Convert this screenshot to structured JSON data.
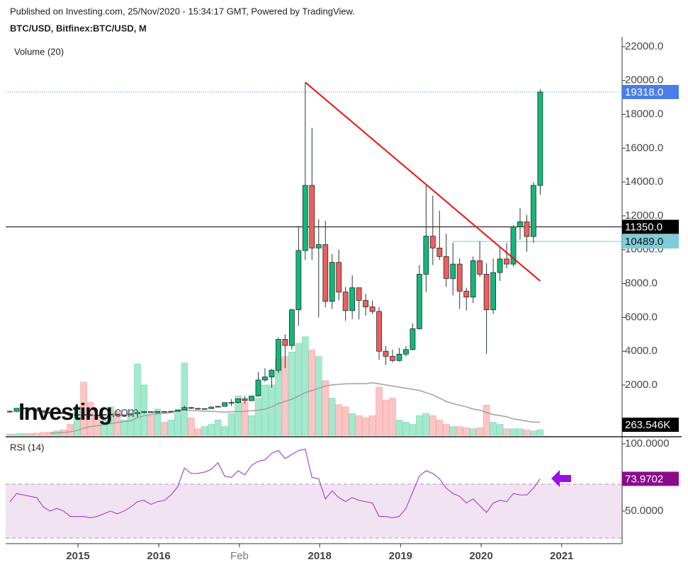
{
  "chart_data": {
    "type": "candlestick",
    "header": "Published on Investing.com, 25/Nov/2020 - 15:34:17 GMT, Powered by TradingView.",
    "title": "BTC/USD, Bitfinex:BTC/USD, M",
    "logo": {
      "name": "Investing",
      "suffix": ".com"
    },
    "categories": [
      null,
      null,
      null,
      null,
      null,
      null,
      null,
      null,
      null,
      null,
      null,
      null,
      null,
      null,
      null,
      null,
      null,
      null,
      null,
      null,
      null,
      null,
      null,
      null,
      null,
      null,
      null,
      null,
      null,
      null,
      null,
      null,
      null,
      null,
      null,
      null,
      null,
      null,
      null,
      null,
      null,
      null,
      null,
      null,
      null,
      null,
      null,
      null,
      null,
      null,
      null,
      null,
      null,
      null,
      null,
      null,
      null,
      null,
      null,
      null,
      null,
      null,
      null,
      null,
      null,
      null,
      null,
      null,
      null,
      null,
      null,
      null,
      null,
      null,
      null,
      null,
      null,
      null,
      null,
      null
    ],
    "xlim": [
      -0.63,
      91.2
    ],
    "xticks": [
      {
        "value": 10.14,
        "label": "2015"
      },
      {
        "value": 22.18,
        "label": "2016"
      },
      {
        "value": 34.2,
        "label": "Feb"
      },
      {
        "value": 46.15,
        "label": "2018"
      },
      {
        "value": 58.2,
        "label": "2019"
      },
      {
        "value": 70.2,
        "label": "2020"
      },
      {
        "value": 82.2,
        "label": "2021"
      }
    ],
    "ylim": [
      -970,
      22330
    ],
    "yticks": [
      {
        "value": 2000,
        "label": "2000.0"
      },
      {
        "value": 4000,
        "label": "4000.0"
      },
      {
        "value": 6000,
        "label": "6000.0"
      },
      {
        "value": 8000,
        "label": "8000.0"
      },
      {
        "value": 10000,
        "label": "10000.0"
      },
      {
        "value": 12000,
        "label": "12000.0"
      },
      {
        "value": 14000,
        "label": "14000.0"
      },
      {
        "value": 16000,
        "label": "16000.0"
      },
      {
        "value": 18000,
        "label": "18000.0"
      },
      {
        "value": 20000,
        "label": "20000.0"
      },
      {
        "value": 22000,
        "label": "22000.0"
      }
    ],
    "up_color": "#10b97a",
    "down_color": "#ef5e5e",
    "open": [
      450,
      445,
      630,
      640,
      585,
      480,
      390,
      340,
      380,
      320,
      218,
      255,
      245,
      235,
      230,
      263,
      284,
      230,
      236,
      314,
      377,
      430,
      368,
      437,
      416,
      448,
      531,
      673,
      624,
      575,
      609,
      700,
      742,
      963,
      970,
      1190,
      1080,
      1350,
      2300,
      2480,
      2875,
      4700,
      4340,
      6450,
      9950,
      13800,
      10100,
      10300,
      6950,
      9250,
      7500,
      6400,
      7750,
      7000,
      6620,
      6350,
      4000,
      3700,
      3450,
      3830,
      4100,
      5330,
      8550,
      10800,
      10100,
      9600,
      8300,
      9150,
      7550,
      7200,
      9350,
      8550,
      6450,
      8650,
      9450,
      9150,
      11350,
      11650,
      10780,
      13800
    ],
    "high": [
      500,
      640,
      680,
      660,
      600,
      500,
      420,
      460,
      460,
      330,
      270,
      300,
      300,
      250,
      270,
      320,
      290,
      250,
      320,
      500,
      470,
      440,
      440,
      440,
      470,
      550,
      780,
      700,
      630,
      620,
      720,
      760,
      980,
      1170,
      1210,
      1350,
      1370,
      2760,
      2990,
      2950,
      4800,
      5000,
      6500,
      11400,
      19891,
      17200,
      11800,
      11700,
      9750,
      10000,
      7800,
      8500,
      7600,
      7400,
      7000,
      6600,
      4300,
      4100,
      4200,
      4300,
      5650,
      9100,
      13800,
      13200,
      12300,
      10950,
      10400,
      9500,
      7750,
      9600,
      10500,
      9200,
      9470,
      10100,
      10400,
      11450,
      12450,
      12050,
      14000,
      19480
    ],
    "low": [
      360,
      420,
      530,
      560,
      460,
      360,
      270,
      310,
      310,
      150,
      210,
      240,
      200,
      220,
      220,
      260,
      200,
      220,
      230,
      300,
      340,
      350,
      350,
      400,
      400,
      440,
      520,
      590,
      560,
      570,
      600,
      690,
      740,
      750,
      920,
      900,
      1060,
      1350,
      2200,
      1850,
      2700,
      3000,
      4100,
      5500,
      9400,
      9400,
      6000,
      6600,
      6500,
      7000,
      5800,
      5900,
      5880,
      6100,
      6200,
      3500,
      3200,
      3350,
      3400,
      3700,
      4050,
      5300,
      7500,
      9100,
      9400,
      7800,
      7300,
      6500,
      6400,
      6850,
      8400,
      3850,
      6200,
      8150,
      8900,
      9000,
      10600,
      9880,
      10400,
      13250
    ],
    "close": [
      445,
      630,
      640,
      585,
      480,
      390,
      340,
      380,
      320,
      218,
      255,
      245,
      235,
      230,
      263,
      284,
      230,
      236,
      314,
      377,
      430,
      368,
      437,
      416,
      448,
      531,
      673,
      624,
      575,
      609,
      700,
      742,
      963,
      970,
      1190,
      1080,
      1350,
      2300,
      2480,
      2875,
      4700,
      4340,
      6450,
      9950,
      13800,
      10100,
      10300,
      6950,
      9250,
      7500,
      6400,
      7750,
      7000,
      6620,
      6350,
      4000,
      3700,
      3450,
      3830,
      4100,
      5330,
      8550,
      10800,
      10100,
      9600,
      8300,
      9150,
      7550,
      7200,
      9350,
      8550,
      6450,
      8650,
      9450,
      9150,
      11350,
      11650,
      10780,
      13800,
      19318
    ],
    "close_value_labels": [
      null,
      null,
      null,
      null,
      null,
      null,
      null,
      null,
      null,
      null,
      null,
      null,
      null,
      null,
      null,
      null,
      null,
      null,
      null,
      null,
      null,
      null,
      null,
      null,
      null,
      null,
      null,
      null,
      null,
      null,
      null,
      null,
      null,
      null,
      null,
      null,
      null,
      null,
      null,
      null,
      null,
      null,
      null,
      null,
      null,
      null,
      null,
      null,
      null,
      null,
      null,
      null,
      null,
      null,
      null,
      null,
      null,
      null,
      null,
      null,
      null,
      null,
      null,
      null,
      null,
      null,
      null,
      null,
      null,
      null,
      null,
      null,
      null,
      null,
      null,
      null,
      null,
      null,
      null,
      "19318.0"
    ],
    "last_color": "#4a7de8",
    "levels": [
      {
        "value": 11350,
        "label": "11350.0",
        "color": "#000000"
      },
      {
        "value": 10489,
        "label": "10489.0",
        "color": "#7ecbd9",
        "from": 66
      }
    ],
    "trendline": {
      "x": [
        44,
        79
      ],
      "y": [
        19891,
        8150
      ],
      "color": "#ee1111"
    },
    "volume": {
      "name": "Volume (20)",
      "ylim": [
        0,
        18000
      ],
      "up_color": "#a4e9cd",
      "down_color": "#fcc5c5",
      "ma_color": "#a0a0a0",
      "values": [
        60,
        70,
        80,
        90,
        100,
        130,
        150,
        200,
        250,
        500,
        1300,
        2430,
        1500,
        900,
        700,
        1300,
        1100,
        700,
        900,
        3260,
        2300,
        900,
        1200,
        600,
        700,
        1100,
        3300,
        800,
        300,
        400,
        500,
        700,
        400,
        1000,
        1800,
        1500,
        900,
        1700,
        2300,
        2300,
        3500,
        3600,
        3800,
        4200,
        4500,
        3900,
        3600,
        2500,
        1700,
        1400,
        1300,
        1000,
        900,
        800,
        900,
        2200,
        1600,
        1700,
        700,
        600,
        500,
        900,
        1000,
        900,
        700,
        500,
        400,
        400,
        350,
        300,
        350,
        1380,
        600,
        500,
        300,
        300,
        300,
        250,
        200,
        263.546
      ],
      "value_labels": [
        null,
        null,
        null,
        null,
        null,
        null,
        null,
        null,
        null,
        null,
        null,
        null,
        null,
        null,
        null,
        null,
        null,
        null,
        null,
        null,
        null,
        null,
        null,
        null,
        null,
        null,
        null,
        null,
        null,
        null,
        null,
        null,
        null,
        null,
        null,
        null,
        null,
        null,
        null,
        null,
        null,
        null,
        null,
        null,
        null,
        null,
        null,
        null,
        null,
        null,
        null,
        null,
        null,
        null,
        null,
        null,
        null,
        null,
        null,
        null,
        null,
        null,
        null,
        null,
        null,
        null,
        null,
        null,
        null,
        null,
        null,
        null,
        null,
        null,
        null,
        null,
        null,
        null,
        null,
        "263.546K"
      ],
      "ma": [
        null,
        null,
        null,
        null,
        null,
        null,
        90,
        110,
        130,
        160,
        220,
        330,
        400,
        440,
        480,
        540,
        590,
        620,
        660,
        800,
        900,
        950,
        980,
        1000,
        1040,
        1150,
        1160,
        1130,
        1120,
        1100,
        1100,
        1080,
        1060,
        1080,
        1090,
        1100,
        1120,
        1150,
        1200,
        1300,
        1450,
        1550,
        1650,
        1800,
        1950,
        2050,
        2150,
        2250,
        2300,
        2330,
        2350,
        2360,
        2360,
        2360,
        2400,
        2350,
        2300,
        2250,
        2200,
        2150,
        2100,
        2050,
        1950,
        1850,
        1700,
        1550,
        1450,
        1380,
        1300,
        1200,
        1150,
        1050,
        950,
        900,
        850,
        750,
        700,
        650,
        600,
        600
      ]
    },
    "rsi": {
      "name": "RSI (14)",
      "color": "#a64ac9",
      "band": [
        30,
        70
      ],
      "band_color": "#f2e3f2",
      "label_color": "#8b0a8b",
      "ylim": [
        25.8,
        104.7
      ],
      "yticks": [
        {
          "value": 50,
          "label": "50.0000"
        },
        {
          "value": 100,
          "label": "100.0000"
        }
      ],
      "values": [
        57,
        63,
        62,
        61,
        60,
        53,
        50,
        52,
        50,
        46,
        46,
        46,
        45,
        46,
        48,
        50,
        48,
        50,
        53,
        57,
        58,
        55,
        57,
        58,
        62,
        68,
        82,
        78,
        78,
        79,
        81,
        86,
        76,
        75,
        80,
        77,
        84,
        87,
        88,
        93,
        95,
        89,
        92,
        95,
        96,
        75,
        74,
        59,
        65,
        60,
        57,
        60,
        58,
        57,
        56,
        46,
        46,
        45,
        46,
        52,
        64,
        76,
        80,
        78,
        74,
        67,
        63,
        61,
        56,
        59,
        54,
        49,
        56,
        58,
        57,
        63,
        62,
        62,
        67,
        73.9702
      ],
      "value_labels": [
        null,
        null,
        null,
        null,
        null,
        null,
        null,
        null,
        null,
        null,
        null,
        null,
        null,
        null,
        null,
        null,
        null,
        null,
        null,
        null,
        null,
        null,
        null,
        null,
        null,
        null,
        null,
        null,
        null,
        null,
        null,
        null,
        null,
        null,
        null,
        null,
        null,
        null,
        null,
        null,
        null,
        null,
        null,
        null,
        null,
        null,
        null,
        null,
        null,
        null,
        null,
        null,
        null,
        null,
        null,
        null,
        null,
        null,
        null,
        null,
        null,
        null,
        null,
        null,
        null,
        null,
        null,
        null,
        null,
        null,
        null,
        null,
        null,
        null,
        null,
        null,
        null,
        null,
        null,
        "73.9702"
      ]
    }
  }
}
